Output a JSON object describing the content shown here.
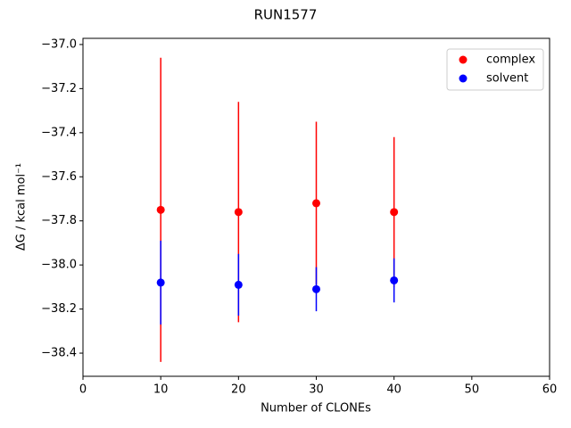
{
  "chart_data": {
    "type": "scatter",
    "title": "RUN1577",
    "x_label": "Number of CLONEs",
    "y_label": "ΔG / kcal mol⁻¹",
    "x": [
      10,
      20,
      30,
      40
    ],
    "series": [
      {
        "name": "complex",
        "color": "#ff0000",
        "values": [
          -37.75,
          -37.76,
          -37.72,
          -37.76
        ],
        "errors": [
          0.69,
          0.5,
          0.37,
          0.34
        ]
      },
      {
        "name": "solvent",
        "color": "#0000ff",
        "values": [
          -38.08,
          -38.09,
          -38.11,
          -38.07
        ],
        "errors": [
          0.19,
          0.14,
          0.1,
          0.1
        ]
      }
    ],
    "xlim": [
      0,
      60
    ],
    "xticks": [
      0,
      10,
      20,
      30,
      40,
      50,
      60
    ],
    "ylim": [
      -38.505,
      -36.972
    ],
    "yticks": [
      {
        "value": -37.0,
        "label": "−37.0"
      },
      {
        "value": -37.2,
        "label": "−37.2"
      },
      {
        "value": -37.4,
        "label": "−37.4"
      },
      {
        "value": -37.6,
        "label": "−37.6"
      },
      {
        "value": -37.8,
        "label": "−37.8"
      },
      {
        "value": -38.0,
        "label": "−38.0"
      },
      {
        "value": -38.2,
        "label": "−38.2"
      },
      {
        "value": -38.4,
        "label": "−38.4"
      }
    ],
    "legend": "upper right",
    "grid": false
  }
}
